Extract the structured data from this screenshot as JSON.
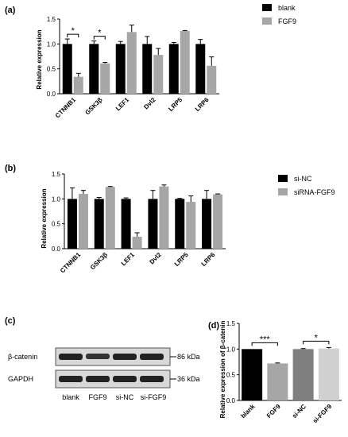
{
  "colors": {
    "black": "#000000",
    "gray": "#a6a6a6",
    "dark_gray": "#7f7f7f",
    "light_gray": "#d0d0d0"
  },
  "chart_data": [
    {
      "panel": "(a)",
      "type": "bar",
      "ylabel": "Relative expression",
      "ylim": [
        0,
        1.5
      ],
      "yticks": [
        "0.0",
        "0.5",
        "1.0",
        "1.5"
      ],
      "categories": [
        "CTNNB1",
        "GSK3β",
        "LEF1",
        "Dvl2",
        "LRP5",
        "LRP6"
      ],
      "series": [
        {
          "name": "blank",
          "color": "#000000",
          "values": [
            1.0,
            1.0,
            1.0,
            1.0,
            1.0,
            1.0
          ],
          "errors": [
            0.1,
            0.06,
            0.05,
            0.15,
            0.03,
            0.09
          ]
        },
        {
          "name": "FGF9",
          "color": "#a6a6a6",
          "values": [
            0.34,
            0.61,
            1.24,
            0.78,
            1.26,
            0.56
          ],
          "errors": [
            0.07,
            0.02,
            0.14,
            0.13,
            0.01,
            0.18
          ]
        }
      ],
      "significance": [
        {
          "category_index": 0,
          "label": "*"
        },
        {
          "category_index": 1,
          "label": "*"
        }
      ],
      "legend": "top-right"
    },
    {
      "panel": "(b)",
      "type": "bar",
      "ylabel": "Relative expression",
      "ylim": [
        0,
        1.5
      ],
      "yticks": [
        "0.0",
        "0.5",
        "1.0",
        "1.5"
      ],
      "categories": [
        "CTNNB1",
        "GSK3β",
        "LEF1",
        "Dvl2",
        "LRP5",
        "LRP6"
      ],
      "series": [
        {
          "name": "si-NC",
          "color": "#000000",
          "values": [
            1.0,
            1.0,
            1.0,
            1.0,
            1.0,
            1.0
          ],
          "errors": [
            0.22,
            0.03,
            0.02,
            0.17,
            0.01,
            0.17
          ]
        },
        {
          "name": "siRNA-FGF9",
          "color": "#a6a6a6",
          "values": [
            1.1,
            1.24,
            0.24,
            1.25,
            0.94,
            1.09
          ],
          "errors": [
            0.07,
            0.01,
            0.08,
            0.03,
            0.12,
            0.01
          ]
        }
      ],
      "legend": "top-right"
    },
    {
      "panel": "(d)",
      "type": "bar",
      "ylabel": "Relative expression of β-catenin",
      "ylim": [
        0,
        1.5
      ],
      "yticks": [
        "0.0",
        "0.5",
        "1.0",
        "1.5"
      ],
      "categories": [
        "blank",
        "FGF9",
        "si-NC",
        "si-FGF9"
      ],
      "values": [
        1.0,
        0.72,
        1.0,
        1.01
      ],
      "errors": [
        0.0,
        0.01,
        0.01,
        0.02
      ],
      "colors": [
        "#000000",
        "#a6a6a6",
        "#7f7f7f",
        "#d0d0d0"
      ],
      "significance": [
        {
          "from": 0,
          "to": 1,
          "label": "***"
        },
        {
          "from": 2,
          "to": 3,
          "label": "*"
        }
      ]
    }
  ],
  "blot": {
    "panel": "(c)",
    "rows": [
      {
        "label": "β-catenin",
        "size": "86 kDa"
      },
      {
        "label": "GAPDH",
        "size": "36 kDa"
      }
    ],
    "lanes": [
      "blank",
      "FGF9",
      "si-NC",
      "si-FGF9"
    ]
  }
}
